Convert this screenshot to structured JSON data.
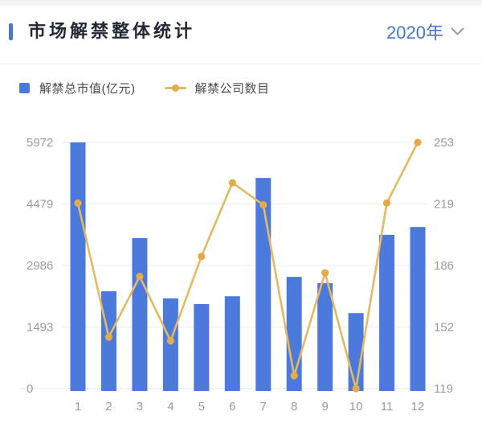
{
  "header": {
    "title": "市场解禁整体统计",
    "accent_color": "#4A79C9",
    "year_selector": {
      "label": "2020年",
      "color": "#4677C9"
    }
  },
  "legend": {
    "items": [
      {
        "label": "解禁总市值(亿元)",
        "swatch": "square"
      },
      {
        "label": "解禁公司数目",
        "swatch": "line-dot"
      }
    ]
  },
  "chart_data": {
    "type": "bar",
    "subtype": "dual-axis combo: bars (left axis) + line with markers (right axis)",
    "title": "市场解禁整体统计 2020年",
    "categories": [
      "1",
      "2",
      "3",
      "4",
      "5",
      "6",
      "7",
      "8",
      "9",
      "10",
      "11",
      "12"
    ],
    "series": [
      {
        "name": "解禁总市值(亿元)",
        "type": "bar",
        "axis": "left",
        "color": "#4C79DC",
        "values": [
          5972,
          2360,
          3650,
          2190,
          2050,
          2240,
          5110,
          2710,
          2560,
          1830,
          3730,
          3920
        ]
      },
      {
        "name": "解禁公司数目",
        "type": "line",
        "axis": "right",
        "color": "#E5B964",
        "marker_color": "#E3AC48",
        "values": [
          220,
          147,
          180,
          145,
          191,
          231,
          219,
          126,
          182,
          119,
          220,
          253
        ]
      }
    ],
    "left_axis": {
      "ticks": [
        0,
        1493,
        2986,
        4479,
        5972
      ],
      "min": 0,
      "max": 5972
    },
    "right_axis": {
      "ticks": [
        119,
        152,
        186,
        219,
        253
      ],
      "min": 119,
      "max": 253
    },
    "xlabel": "",
    "ylabel_left": "亿元",
    "ylabel_right": "公司数目",
    "grid": true,
    "grid_color": "#ededed",
    "axis_text_color": "#9b9b9b",
    "legend_position": "top-left"
  }
}
